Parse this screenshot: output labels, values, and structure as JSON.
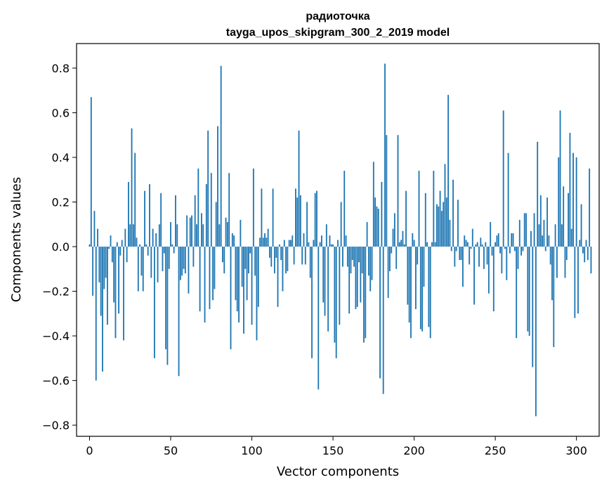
{
  "chart_data": {
    "type": "bar",
    "title": "радиоточка",
    "subtitle": "tayga_upos_skipgram_300_2_2019 model",
    "xlabel": "Vector components",
    "ylabel": "Components values",
    "xlim": [
      -8,
      314
    ],
    "ylim": [
      -0.85,
      0.91
    ],
    "xticks": [
      0,
      50,
      100,
      150,
      200,
      250,
      300
    ],
    "xtick_labels": [
      "0",
      "50",
      "100",
      "150",
      "200",
      "250",
      "300"
    ],
    "yticks": [
      -0.8,
      -0.6,
      -0.4,
      -0.2,
      0.0,
      0.2,
      0.4,
      0.6,
      0.8
    ],
    "ytick_labels": [
      "−0.8",
      "−0.6",
      "−0.4",
      "−0.2",
      "0.0",
      "0.2",
      "0.4",
      "0.6",
      "0.8"
    ],
    "grid": false,
    "bar_color": "#1f77b4",
    "series": [
      {
        "values": [
          0.01,
          0.67,
          -0.22,
          0.16,
          -0.6,
          0.08,
          -0.16,
          -0.31,
          -0.56,
          -0.19,
          -0.14,
          -0.35,
          -0.01,
          0.05,
          -0.07,
          -0.25,
          -0.41,
          0.02,
          -0.3,
          -0.04,
          0.03,
          -0.42,
          0.08,
          -0.07,
          0.29,
          0.1,
          0.53,
          0.1,
          0.42,
          0.04,
          -0.2,
          0.01,
          -0.13,
          -0.2,
          0.25,
          0.01,
          -0.04,
          0.28,
          -0.14,
          0.08,
          -0.5,
          0.06,
          -0.16,
          0.1,
          0.24,
          -0.11,
          -0.03,
          -0.46,
          -0.53,
          -0.1,
          0.11,
          0.01,
          -0.03,
          0.23,
          0.1,
          -0.58,
          -0.15,
          -0.13,
          -0.1,
          -0.12,
          0.14,
          -0.21,
          0.13,
          0.14,
          -0.09,
          0.23,
          0.1,
          0.35,
          -0.29,
          0.15,
          0.1,
          -0.34,
          0.28,
          0.52,
          -0.28,
          0.33,
          -0.24,
          -0.19,
          0.2,
          0.54,
          0.1,
          0.81,
          -0.07,
          -0.12,
          0.13,
          0.11,
          0.33,
          -0.46,
          0.06,
          0.05,
          -0.24,
          -0.29,
          -0.34,
          0.12,
          -0.18,
          -0.39,
          -0.1,
          -0.24,
          -0.12,
          -0.03,
          -0.35,
          0.35,
          -0.13,
          -0.42,
          -0.27,
          0.04,
          0.26,
          0.04,
          0.06,
          0.04,
          0.08,
          -0.05,
          -0.09,
          0.26,
          -0.12,
          -0.05,
          -0.27,
          0.01,
          -0.06,
          -0.2,
          0.03,
          -0.12,
          -0.11,
          0.03,
          0.03,
          0.05,
          -0.08,
          0.26,
          0.22,
          0.52,
          0.23,
          -0.08,
          0.06,
          -0.08,
          0.2,
          0.02,
          -0.14,
          -0.5,
          0.03,
          0.24,
          0.25,
          -0.64,
          0.02,
          0.05,
          -0.25,
          -0.31,
          0.1,
          -0.38,
          0.05,
          0.01,
          0.01,
          -0.43,
          -0.5,
          0.03,
          -0.35,
          0.2,
          -0.09,
          0.34,
          0.05,
          -0.09,
          -0.3,
          -0.12,
          -0.06,
          -0.09,
          -0.28,
          -0.27,
          -0.07,
          -0.25,
          -0.12,
          -0.43,
          -0.41,
          0.11,
          -0.13,
          -0.2,
          -0.15,
          0.38,
          0.22,
          0.18,
          0.17,
          -0.59,
          0.29,
          -0.66,
          0.82,
          0.5,
          -0.23,
          -0.11,
          -0.03,
          0.08,
          0.15,
          -0.1,
          0.5,
          0.02,
          0.03,
          0.07,
          0.01,
          0.25,
          -0.26,
          -0.34,
          -0.41,
          0.06,
          0.03,
          -0.28,
          -0.08,
          0.34,
          -0.37,
          -0.38,
          -0.18,
          0.24,
          0.02,
          -0.36,
          -0.41,
          0.02,
          0.34,
          0.02,
          0.19,
          0.18,
          0.25,
          0.16,
          0.2,
          0.37,
          0.22,
          0.68,
          0.12,
          -0.02,
          0.3,
          -0.09,
          -0.02,
          0.21,
          -0.06,
          -0.06,
          -0.18,
          0.05,
          0.03,
          0.02,
          -0.08,
          -0.01,
          0.08,
          -0.26,
          0.01,
          0.02,
          -0.09,
          0.04,
          0.01,
          -0.1,
          0.02,
          -0.08,
          -0.21,
          0.11,
          -0.04,
          -0.29,
          0.02,
          0.05,
          0.06,
          -0.03,
          -0.12,
          0.61,
          -0.01,
          -0.15,
          0.42,
          -0.03,
          0.06,
          0.06,
          -0.02,
          -0.41,
          -0.1,
          0.12,
          -0.04,
          -0.02,
          0.15,
          0.15,
          -0.38,
          -0.4,
          0.07,
          -0.54,
          0.15,
          -0.76,
          0.47,
          0.1,
          0.23,
          0.05,
          0.12,
          -0.02,
          0.22,
          0.05,
          -0.08,
          -0.24,
          -0.45,
          0.1,
          -0.14,
          0.4,
          0.61,
          0.1,
          0.27,
          -0.14,
          -0.06,
          0.24,
          0.51,
          0.08,
          0.42,
          -0.32,
          0.4,
          -0.3,
          0.03,
          0.19,
          -0.03,
          -0.07,
          0.03,
          -0.06,
          0.35,
          -0.12
        ]
      }
    ]
  }
}
